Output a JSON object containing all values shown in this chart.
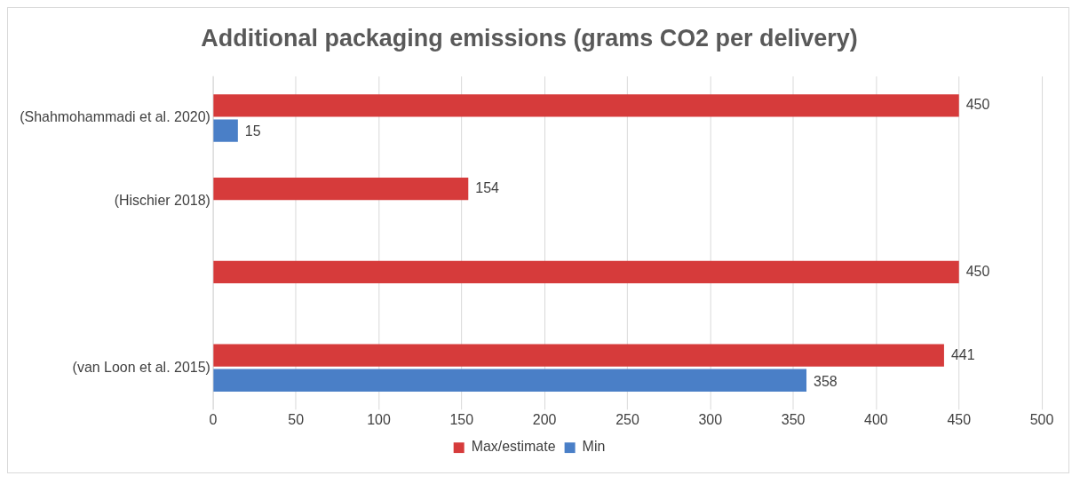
{
  "chart_data": {
    "type": "bar",
    "orientation": "horizontal",
    "title": "Additional packaging emissions (grams CO2 per delivery)",
    "categories": [
      "(Shahmohammadi et al. 2020)",
      "(Hischier 2018)",
      null,
      "(van Loon et al. 2015)"
    ],
    "series": [
      {
        "name": "Max/estimate",
        "color": "#d63b3b",
        "values": [
          450,
          154,
          450,
          441
        ]
      },
      {
        "name": "Min",
        "color": "#4a7fc7",
        "values": [
          15,
          null,
          null,
          358
        ]
      }
    ],
    "xlim": [
      0,
      500
    ],
    "xticks": [
      0,
      50,
      100,
      150,
      200,
      250,
      300,
      350,
      400,
      450,
      500
    ],
    "grid": "x",
    "legend": "bottom",
    "data_labels": true
  }
}
